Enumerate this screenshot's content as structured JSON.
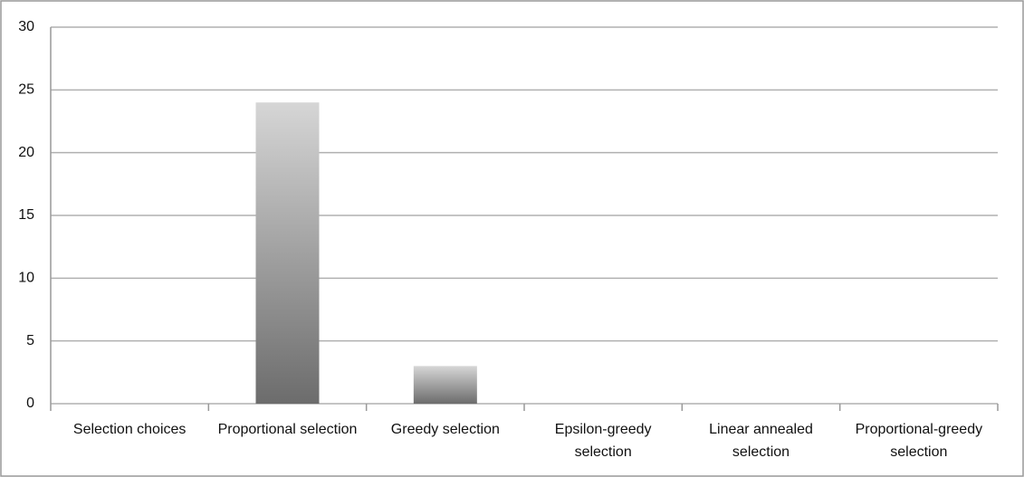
{
  "chart_data": {
    "type": "bar",
    "categories": [
      "Selection choices",
      "Proportional selection",
      "Greedy selection",
      "Epsilon-greedy selection",
      "Linear annealed selection",
      "Proportional-greedy selection"
    ],
    "values": [
      0,
      24,
      3,
      0,
      0,
      0
    ],
    "gradient": [
      "#d6d6d6",
      "#6c6c6c"
    ],
    "ylim": [
      0,
      30
    ],
    "yticks": [
      0,
      5,
      10,
      15,
      20,
      25,
      30
    ],
    "grid": true
  }
}
